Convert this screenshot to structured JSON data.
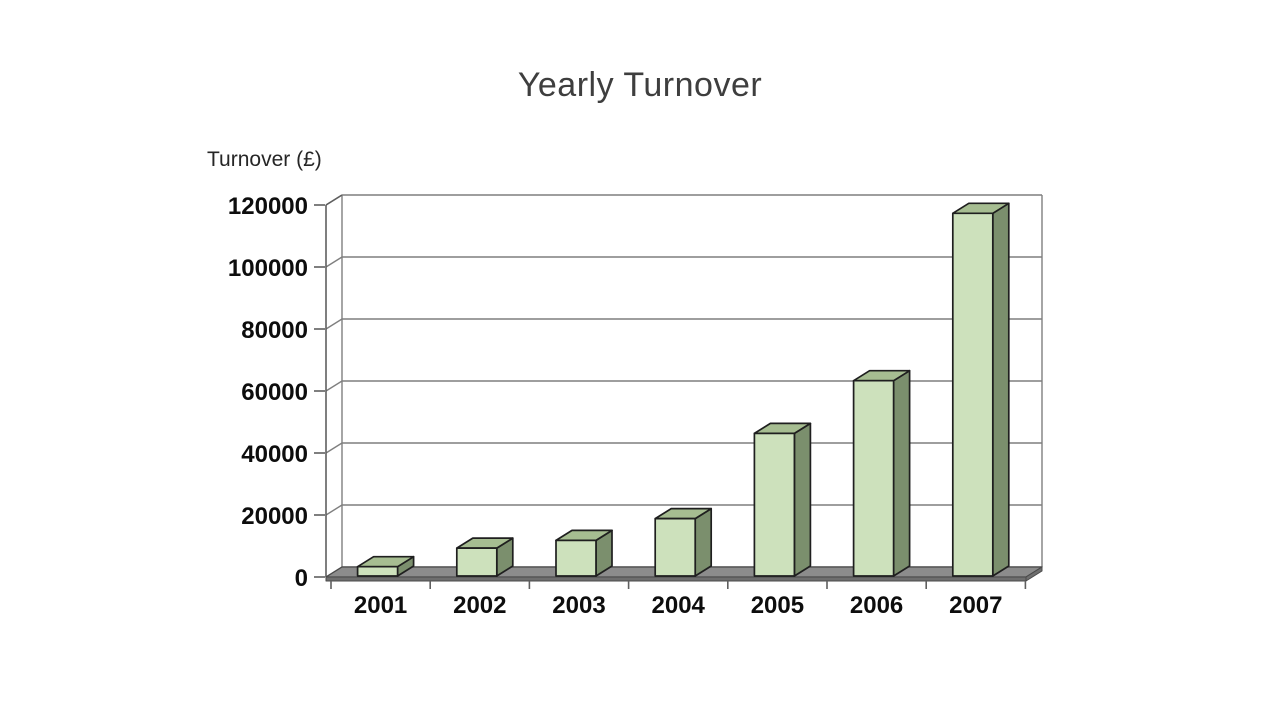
{
  "slide": {
    "background": "#ffffff"
  },
  "chart_data": {
    "type": "bar",
    "view": "3d",
    "title": "Yearly Turnover",
    "ylabel": "Turnover (£)",
    "xlabel": "",
    "categories": [
      "2001",
      "2002",
      "2003",
      "2004",
      "2005",
      "2006",
      "2007"
    ],
    "values": [
      3000,
      9000,
      11500,
      18500,
      46000,
      63000,
      117000
    ],
    "yticks": [
      0,
      20000,
      40000,
      60000,
      80000,
      100000,
      120000
    ],
    "ylim": [
      0,
      120000
    ],
    "grid": true,
    "legend": "none",
    "colors": {
      "bar_front": "#cde1bc",
      "bar_top": "#a6bd91",
      "bar_side": "#7b8f6d",
      "bar_outline": "#1f1f1f",
      "floor_top": "#8c8c8c",
      "floor_front": "#6e6e6e",
      "floor_outline": "#4a4a4a",
      "gridline": "#7f7f7f",
      "axis_line": "#5f5f5f",
      "tick_label": "#0d0d0d",
      "title_color": "#3e3e3e",
      "axis_title_color": "#262626"
    }
  }
}
